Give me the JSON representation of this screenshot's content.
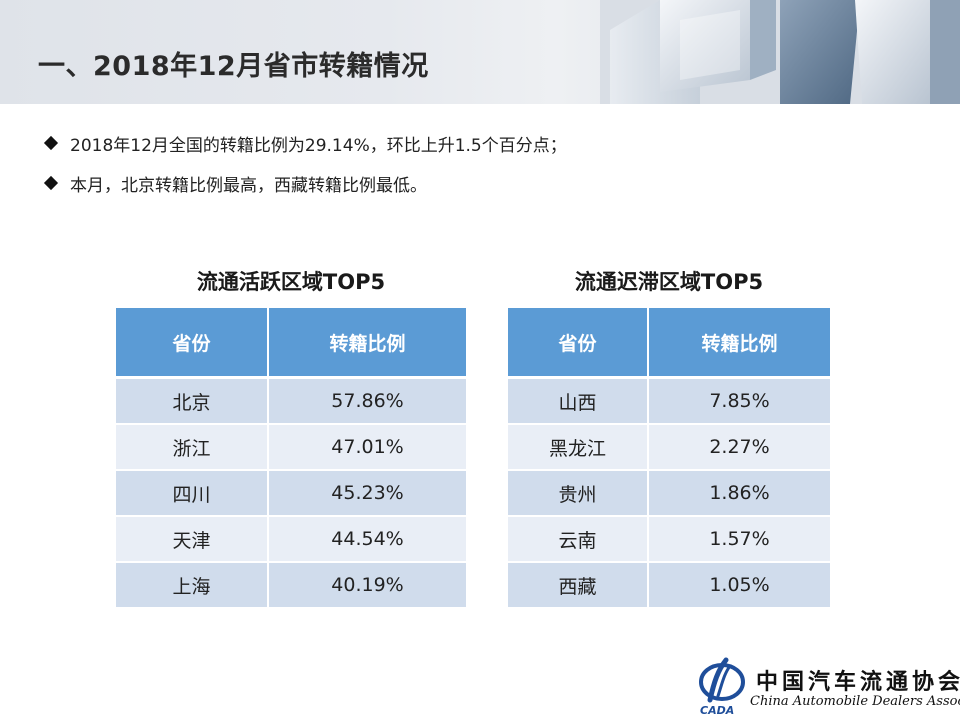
{
  "slide": {
    "title": "一、2018年12月省市转籍情况",
    "bullets": [
      "2018年12月全国的转籍比例为29.14%，环比上升1.5个百分点；",
      "本月，北京转籍比例最高，西藏转籍比例最低。"
    ]
  },
  "tables": [
    {
      "caption": "流通活跃区域TOP5",
      "headers": [
        "省份",
        "转籍比例"
      ],
      "rows": [
        [
          "北京",
          "57.86%"
        ],
        [
          "浙江",
          "47.01%"
        ],
        [
          "四川",
          "45.23%"
        ],
        [
          "天津",
          "44.54%"
        ],
        [
          "上海",
          "40.19%"
        ]
      ]
    },
    {
      "caption": "流通迟滞区域TOP5",
      "headers": [
        "省份",
        "转籍比例"
      ],
      "rows": [
        [
          "山西",
          "7.85%"
        ],
        [
          "黑龙江",
          "2.27%"
        ],
        [
          "贵州",
          "1.86%"
        ],
        [
          "云南",
          "1.57%"
        ],
        [
          "西藏",
          "1.05%"
        ]
      ]
    }
  ],
  "logo": {
    "mark_text": "CADA",
    "name_cn": "中国汽车流通协会",
    "name_en": "China Automobile Dealers Association"
  },
  "colors": {
    "header_fill": "#5b9bd5",
    "row_dark": "#d0dcec",
    "row_light": "#e9eef6",
    "logo_blue": "#1f4e9a"
  },
  "icons": {
    "bullet": "diamond-bullet-icon",
    "logo": "cada-logo-icon"
  }
}
